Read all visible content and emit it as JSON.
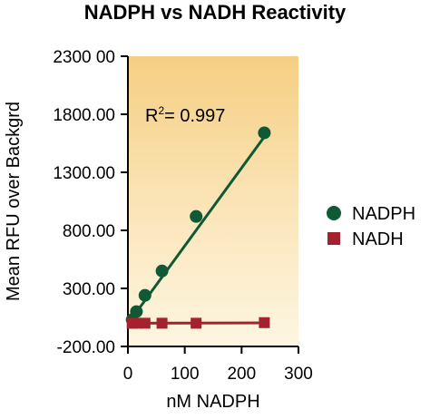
{
  "chart_data": {
    "type": "scatter",
    "title": "NADPH vs NADH Reactivity",
    "xlabel": "nM NADPH",
    "ylabel": "Mean RFU over Backgrd",
    "xlim": [
      0,
      300
    ],
    "ylim": [
      -200,
      2300
    ],
    "x_ticks": [
      0,
      100,
      200,
      300
    ],
    "x_tick_labels": [
      "0",
      "100",
      "200",
      "300"
    ],
    "y_ticks": [
      -200,
      300,
      800,
      1300,
      1800,
      2300
    ],
    "y_tick_labels": [
      "-200.00",
      "300.00",
      "800.00",
      "1300.00",
      "1800.00",
      "2300 00"
    ],
    "annotation": {
      "prefix": "R",
      "sup": "2",
      "suffix": "= 0.997"
    },
    "legend_position": "right",
    "series": [
      {
        "name": "NADPH",
        "marker": "circle",
        "color": "#0f5a34",
        "x": [
          7.5,
          15,
          30,
          60,
          120,
          240
        ],
        "y": [
          30,
          100,
          240,
          450,
          920,
          1640
        ],
        "fit": {
          "x": [
            7.5,
            245
          ],
          "y": [
            45,
            1640
          ]
        }
      },
      {
        "name": "NADH",
        "marker": "square",
        "color": "#a3222e",
        "x": [
          7.5,
          15,
          30,
          60,
          120,
          240
        ],
        "y": [
          0,
          0,
          0,
          0,
          0,
          5
        ],
        "fit": {
          "x": [
            0,
            245
          ],
          "y": [
            0,
            3
          ]
        }
      }
    ]
  }
}
